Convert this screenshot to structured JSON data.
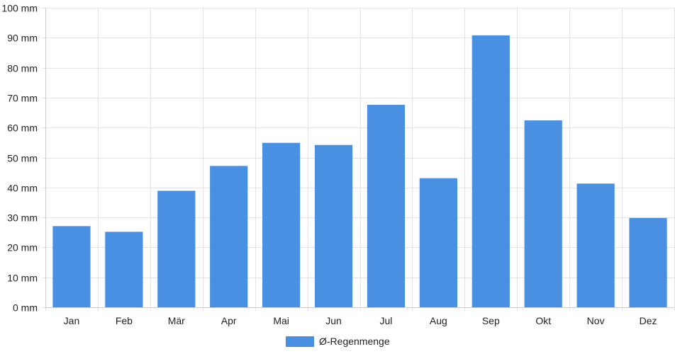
{
  "chart_data": {
    "type": "bar",
    "categories": [
      "Jan",
      "Feb",
      "Mär",
      "Apr",
      "Mai",
      "Jun",
      "Jul",
      "Aug",
      "Sep",
      "Okt",
      "Nov",
      "Dez"
    ],
    "series": [
      {
        "name": "Ø-Regenmenge",
        "values": [
          27.1,
          25.2,
          38.9,
          47.2,
          54.9,
          54.2,
          67.6,
          43.1,
          90.8,
          62.4,
          41.3,
          29.8
        ],
        "color": "#4a90e2"
      }
    ],
    "ylim": [
      0,
      100
    ],
    "yticks": [
      0,
      10,
      20,
      30,
      40,
      50,
      60,
      70,
      80,
      90,
      100
    ],
    "y_tick_suffix": " mm",
    "grid": true,
    "legend_position": "bottom-center",
    "colors": {
      "grid": "#e3e3e3",
      "axis": "#cccccc",
      "text": "#222222"
    }
  }
}
